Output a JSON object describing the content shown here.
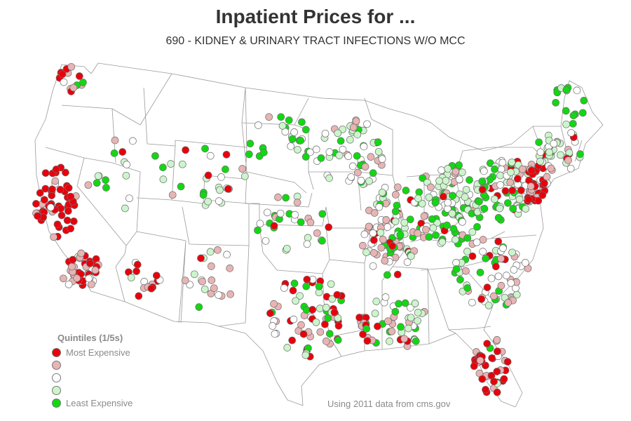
{
  "title": "Inpatient Prices for ...",
  "subtitle": "690 - KIDNEY & URINARY TRACT INFECTIONS W/O MCC",
  "source_note": "Using 2011 data from cms.gov",
  "legend": {
    "title": "Quintiles (1/5s)",
    "items": [
      {
        "label": "Most Expensive",
        "color": "#e8000b"
      },
      {
        "label": "",
        "color": "#e8b4b4"
      },
      {
        "label": "",
        "color": "#ffffff"
      },
      {
        "label": "",
        "color": "#ccf5cc"
      },
      {
        "label": "Least Expensive",
        "color": "#12d812"
      }
    ]
  },
  "map": {
    "region": "United States (contiguous)",
    "boundaries": "state borders",
    "marker_encoding": "hospital price quintile"
  }
}
